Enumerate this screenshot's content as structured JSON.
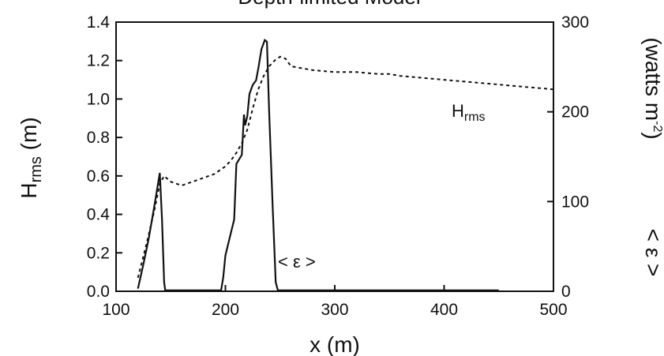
{
  "chart_data": {
    "type": "line",
    "title": "Depth-limited Model",
    "xlabel": "x (m)",
    "ylabel_left": {
      "main": "H",
      "sub": "rms",
      "unit": " (m)"
    },
    "ylabel_right": {
      "var": "< ε >",
      "unit_pre": "(watts  m",
      "unit_sup": "-2",
      "unit_post": ")"
    },
    "xlim": [
      100,
      500
    ],
    "ylim_left": [
      0,
      1.4
    ],
    "ylim_right": [
      0,
      300
    ],
    "x_ticks": [
      "100",
      "200",
      "300",
      "400",
      "500"
    ],
    "y_left_ticks": [
      "0.0",
      "0.2",
      "0.4",
      "0.6",
      "0.8",
      "1.0",
      "1.2",
      "1.4"
    ],
    "y_right_ticks": [
      "0",
      "100",
      "200",
      "300"
    ],
    "grid": false,
    "annotations": [
      {
        "main": "H",
        "sub": "rms",
        "x": 400,
        "y": 0.95
      },
      {
        "text": "< ε >",
        "x": 265,
        "y": 0.14
      }
    ],
    "series": [
      {
        "name": "H",
        "axis": "left",
        "style": "dashed",
        "x": [
          120,
          128,
          135,
          140,
          144,
          150,
          160,
          170,
          180,
          190,
          195,
          200,
          205,
          210,
          215,
          220,
          225,
          230,
          235,
          240,
          245,
          250,
          255,
          260,
          280,
          300,
          320,
          340,
          350,
          360,
          380,
          400,
          420,
          440,
          460,
          480,
          500
        ],
        "y": [
          0.07,
          0.25,
          0.42,
          0.56,
          0.6,
          0.57,
          0.55,
          0.57,
          0.59,
          0.61,
          0.63,
          0.65,
          0.68,
          0.72,
          0.77,
          0.84,
          0.95,
          1.05,
          1.12,
          1.17,
          1.2,
          1.22,
          1.21,
          1.17,
          1.15,
          1.14,
          1.14,
          1.13,
          1.13,
          1.12,
          1.11,
          1.1,
          1.09,
          1.08,
          1.07,
          1.06,
          1.05
        ]
      },
      {
        "name": "ε",
        "axis": "right",
        "style": "solid",
        "x": [
          120,
          125,
          130,
          135,
          140,
          142,
          144,
          145,
          150,
          170,
          190,
          196,
          198,
          200,
          205,
          208,
          210,
          215,
          217,
          218,
          220,
          222,
          225,
          228,
          230,
          233,
          236,
          238,
          240,
          243,
          246,
          248,
          260,
          300,
          350,
          400,
          450
        ],
        "y": [
          3,
          30,
          60,
          95,
          132,
          80,
          10,
          1,
          1,
          1,
          1,
          1,
          15,
          40,
          65,
          80,
          142,
          152,
          197,
          185,
          195,
          220,
          230,
          235,
          248,
          270,
          280,
          278,
          200,
          100,
          10,
          1,
          1,
          1,
          1,
          1,
          1
        ]
      }
    ]
  }
}
